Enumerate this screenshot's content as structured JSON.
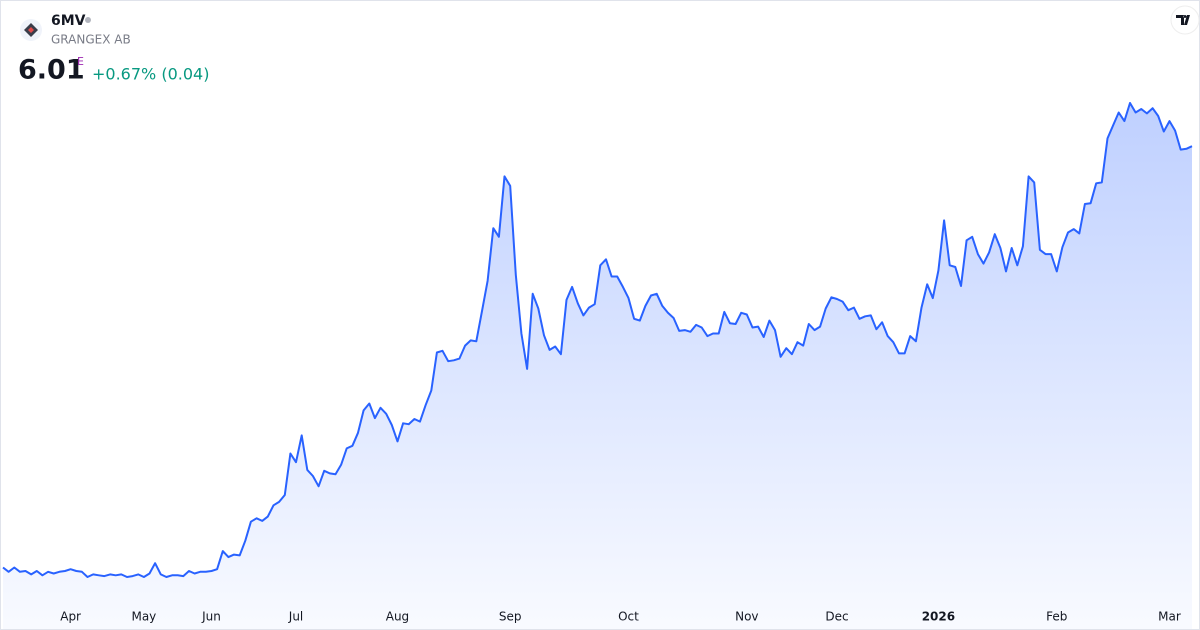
{
  "chart_data": {
    "type": "area",
    "title": "6MV",
    "subtitle": "GRANGEX AB",
    "price": 6.01,
    "price_flag": "E",
    "change": "+0.67% (0.04)",
    "color": "#2962ff",
    "values": [
      1.13,
      1.08,
      1.13,
      1.08,
      1.09,
      1.05,
      1.09,
      1.04,
      1.08,
      1.06,
      1.08,
      1.09,
      1.11,
      1.09,
      1.08,
      1.02,
      1.05,
      1.04,
      1.03,
      1.05,
      1.04,
      1.05,
      1.02,
      1.03,
      1.05,
      1.02,
      1.06,
      1.18,
      1.05,
      1.02,
      1.04,
      1.04,
      1.03,
      1.09,
      1.06,
      1.08,
      1.08,
      1.09,
      1.11,
      1.32,
      1.25,
      1.28,
      1.27,
      1.44,
      1.66,
      1.7,
      1.67,
      1.72,
      1.85,
      1.89,
      1.97,
      2.45,
      2.35,
      2.66,
      2.26,
      2.19,
      2.07,
      2.25,
      2.22,
      2.21,
      2.32,
      2.51,
      2.54,
      2.69,
      2.95,
      3.03,
      2.86,
      2.98,
      2.91,
      2.78,
      2.59,
      2.8,
      2.79,
      2.85,
      2.82,
      3.01,
      3.18,
      3.62,
      3.64,
      3.52,
      3.53,
      3.55,
      3.7,
      3.76,
      3.75,
      4.1,
      4.45,
      5.06,
      4.96,
      5.66,
      5.55,
      4.52,
      3.84,
      3.43,
      4.3,
      4.13,
      3.82,
      3.65,
      3.69,
      3.6,
      4.23,
      4.38,
      4.19,
      4.05,
      4.14,
      4.18,
      4.63,
      4.7,
      4.5,
      4.5,
      4.38,
      4.25,
      4.01,
      3.99,
      4.16,
      4.28,
      4.3,
      4.16,
      4.08,
      4.02,
      3.87,
      3.88,
      3.86,
      3.94,
      3.91,
      3.81,
      3.84,
      3.84,
      4.09,
      3.96,
      3.95,
      4.08,
      4.06,
      3.91,
      3.92,
      3.8,
      3.99,
      3.88,
      3.57,
      3.67,
      3.6,
      3.74,
      3.7,
      3.95,
      3.88,
      3.92,
      4.13,
      4.26,
      4.24,
      4.21,
      4.11,
      4.14,
      4.01,
      4.04,
      4.05,
      3.89,
      3.97,
      3.81,
      3.74,
      3.61,
      3.61,
      3.81,
      3.75,
      4.14,
      4.41,
      4.25,
      4.57,
      5.15,
      4.63,
      4.61,
      4.39,
      4.92,
      4.96,
      4.76,
      4.65,
      4.78,
      4.99,
      4.83,
      4.56,
      4.83,
      4.63,
      4.85,
      5.66,
      5.59,
      4.81,
      4.76,
      4.76,
      4.56,
      4.84,
      5.01,
      5.05,
      5.0,
      5.34,
      5.35,
      5.58,
      5.59,
      6.1,
      6.25,
      6.4,
      6.3,
      6.51,
      6.4,
      6.44,
      6.39,
      6.45,
      6.36,
      6.18,
      6.3,
      6.19,
      5.97,
      5.98,
      6.01
    ],
    "xticks": [
      {
        "value": 12,
        "label": "Apr"
      },
      {
        "value": 25,
        "label": "May"
      },
      {
        "value": 37,
        "label": "Jun"
      },
      {
        "value": 52,
        "label": "Jul"
      },
      {
        "value": 70,
        "label": "Aug"
      },
      {
        "value": 90,
        "label": "Sep"
      },
      {
        "value": 111,
        "label": "Oct"
      },
      {
        "value": 132,
        "label": "Nov"
      },
      {
        "value": 148,
        "label": "Dec"
      },
      {
        "value": 166,
        "label": "2026"
      },
      {
        "value": 187,
        "label": "Feb"
      },
      {
        "value": 207,
        "label": "Mar"
      }
    ],
    "bold_xtick": 9
  }
}
